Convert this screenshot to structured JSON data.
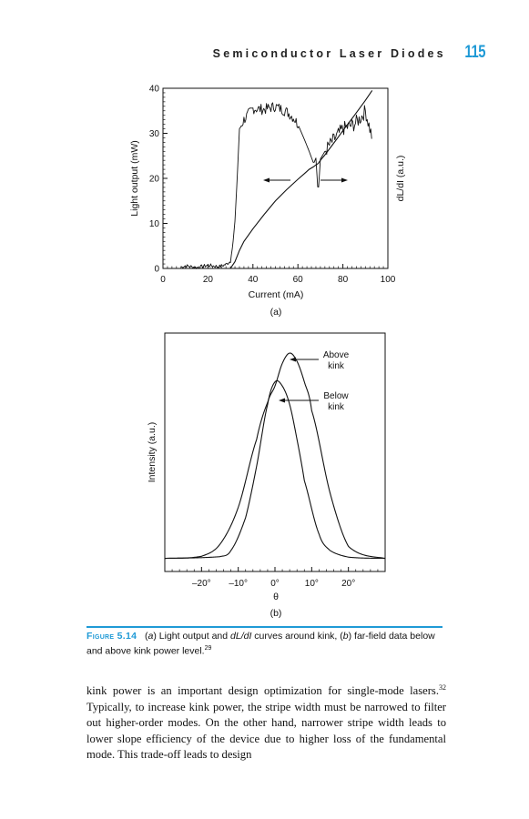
{
  "header": {
    "running_title": "Semiconductor Laser Diodes",
    "page_number": "115"
  },
  "figure_a": {
    "panel_label": "(a)",
    "y_label_left": "Light output (mW)",
    "y_label_right": "dL/dI (a.u.)",
    "x_label": "Current (mA)",
    "x_ticks": [
      "0",
      "20",
      "40",
      "60",
      "80",
      "100"
    ],
    "y_ticks": [
      "0",
      "10",
      "20",
      "30",
      "40"
    ]
  },
  "figure_b": {
    "panel_label": "(b)",
    "y_label": "Intensity (a.u.)",
    "x_label": "θ",
    "x_ticks": [
      "–20°",
      "–10°",
      "0°",
      "10°",
      "20°"
    ],
    "label_above_1": "Above",
    "label_above_2": "kink",
    "label_below_1": "Below",
    "label_below_2": "kink"
  },
  "chart_data": [
    {
      "type": "line",
      "title": "",
      "xlabel": "Current (mA)",
      "ylabel": "Light output (mW)",
      "y2label": "dL/dI (a.u.)",
      "xlim": [
        0,
        100
      ],
      "ylim": [
        0,
        40
      ],
      "grid": false,
      "series": [
        {
          "x": [
            0,
            30,
            32,
            34,
            36,
            40,
            45,
            50,
            55,
            60,
            63,
            65,
            67,
            68,
            69,
            70,
            72,
            75,
            78,
            80,
            85,
            90,
            93
          ],
          "y": [
            0,
            0,
            1.5,
            4,
            6,
            8.8,
            12,
            15,
            17.5,
            19.8,
            21.1,
            22,
            22.6,
            23,
            23.3,
            24,
            25.2,
            27.2,
            29.2,
            30.6,
            33.9,
            37.3,
            39.5
          ]
        },
        {
          "x": [
            8,
            10,
            15,
            20,
            25,
            28,
            30,
            31,
            32,
            33,
            34,
            36,
            40,
            45,
            50,
            55,
            58,
            60,
            63,
            65,
            67,
            68,
            69,
            70,
            72,
            75,
            80,
            85,
            88,
            90,
            93
          ],
          "y": [
            0.3,
            0.6,
            0.2,
            0.7,
            0.4,
            0.9,
            1.6,
            5,
            10.5,
            20,
            31,
            33,
            35.5,
            35.3,
            36,
            34.8,
            33.5,
            32,
            28.5,
            26,
            23.3,
            24.5,
            16.5,
            24.3,
            26,
            28,
            31,
            32,
            33.5,
            35,
            29
          ]
        }
      ]
    },
    {
      "type": "line",
      "title": "",
      "xlabel": "θ",
      "ylabel": "Intensity (a.u.)",
      "xlim": [
        -30,
        30
      ],
      "grid": false,
      "series": [
        {
          "name": "Above kink",
          "x": [
            -30,
            -20,
            -15,
            -10,
            -5,
            -2,
            0,
            2,
            4,
            6,
            8,
            10,
            15,
            20,
            30
          ],
          "y": [
            0.002,
            0.012,
            0.07,
            0.25,
            0.58,
            0.76,
            0.84,
            0.95,
            1.0,
            0.96,
            0.86,
            0.72,
            0.32,
            0.06,
            0.002
          ]
        },
        {
          "name": "Below kink",
          "x": [
            -30,
            -15,
            -12,
            -8,
            -5,
            -2,
            0,
            2,
            4,
            6,
            8,
            12,
            15,
            20,
            30
          ],
          "y": [
            0.002,
            0.01,
            0.04,
            0.2,
            0.45,
            0.75,
            0.86,
            0.84,
            0.75,
            0.58,
            0.38,
            0.12,
            0.04,
            0.008,
            0.002
          ]
        }
      ]
    }
  ],
  "caption": {
    "label": "Figure 5.14",
    "text_1": "(",
    "text_a": "a",
    "text_2": ") Light output and ",
    "text_dldi": "dL/dI",
    "text_3": " curves around kink, (",
    "text_b": "b",
    "text_4": ") far-field data below and above kink power level.",
    "ref": "29"
  },
  "body": {
    "p1": "kink power is an important design optimization for single-mode lasers.",
    "ref1": "32",
    "p2": " Typically, to increase kink power, the stripe width must be narrowed to filter out higher-order modes. On the other hand, narrower stripe width leads to lower slope efficiency of the device due to higher loss of the fundamental mode. This trade-off leads to design"
  }
}
